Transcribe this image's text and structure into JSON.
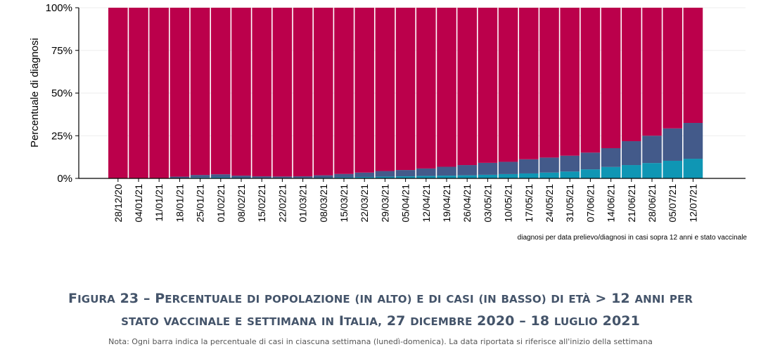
{
  "chart_data": {
    "type": "bar",
    "stacked": true,
    "ylabel": "Percentuale di diagnosi",
    "ylim": [
      0,
      100
    ],
    "yticks": [
      "0%",
      "25%",
      "50%",
      "75%",
      "100%"
    ],
    "grid": true,
    "categories": [
      "28/12/20",
      "04/01/21",
      "11/01/21",
      "18/01/21",
      "25/01/21",
      "01/02/21",
      "08/02/21",
      "15/02/21",
      "22/02/21",
      "01/03/21",
      "08/03/21",
      "15/03/21",
      "22/03/21",
      "29/03/21",
      "05/04/21",
      "12/04/21",
      "19/04/21",
      "26/04/21",
      "03/05/21",
      "10/05/21",
      "17/05/21",
      "24/05/21",
      "31/05/21",
      "07/06/21",
      "14/06/21",
      "21/06/21",
      "28/06/21",
      "05/07/21",
      "12/07/21"
    ],
    "series": [
      {
        "color": "#0f96b4",
        "values": [
          0,
          0,
          0,
          0.2,
          0.5,
          0.6,
          0.4,
          0.3,
          0.3,
          0.3,
          0.4,
          0.6,
          0.8,
          1.0,
          1.2,
          1.4,
          1.6,
          1.8,
          2.1,
          2.5,
          2.9,
          3.4,
          4.0,
          5.3,
          6.7,
          7.8,
          9.0,
          10.3,
          11.5
        ]
      },
      {
        "color": "#435a8a",
        "values": [
          0,
          0,
          0,
          0.8,
          1.5,
          1.8,
          1.2,
          0.9,
          0.8,
          0.9,
          1.4,
          2.0,
          2.6,
          3.3,
          3.7,
          4.4,
          5.2,
          6.0,
          7.0,
          7.2,
          8.3,
          8.8,
          9.3,
          9.8,
          11.0,
          14.0,
          16.0,
          19.0,
          21.0
        ]
      },
      {
        "color": "#bb004b",
        "values": [
          100,
          100,
          100,
          99,
          98,
          97.6,
          98.4,
          98.8,
          98.9,
          98.8,
          98.2,
          97.4,
          96.6,
          95.7,
          95.1,
          94.2,
          93.2,
          92.2,
          90.9,
          90.3,
          88.8,
          87.8,
          86.7,
          84.9,
          82.3,
          78.2,
          75.0,
          70.7,
          67.5
        ]
      }
    ]
  },
  "footnote": "diagnosi per data prelievo/diagnosi in casi sopra 12 anni  e stato vaccinale",
  "caption": {
    "line1": "Figura 23 – Percentuale di popolazione (in alto) e di casi (in basso) di età > 12 anni per",
    "line2": "stato vaccinale e settimana in Italia, 27 dicembre 2020 – 18 luglio 2021"
  },
  "note": "Nota: Ogni barra indica la percentuale di casi in ciascuna settimana (lunedì-domenica). La data riportata si riferisce all'inizio della settimana"
}
